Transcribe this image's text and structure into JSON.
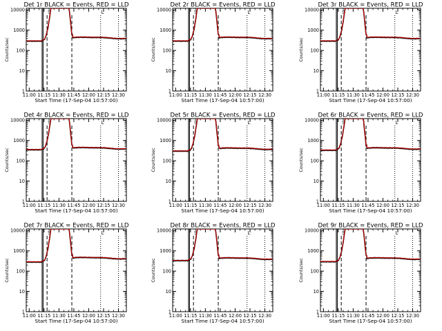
{
  "figure": {
    "x_axis_title": "Start Time (17-Sep-04 10:57:00)",
    "y_axis_title": "Counts/sec",
    "x_tick_labels": [
      "11:00",
      "11:15",
      "11:30",
      "11:45",
      "12:00",
      "12:15",
      "12:30"
    ],
    "y_tick_labels": [
      "1",
      "10",
      "100",
      "1000",
      "10000"
    ],
    "markers": [
      "S",
      "L"
    ]
  },
  "chart_data": [
    {
      "type": "line",
      "title": "Det 1r BLACK = Events, RED = LLD",
      "xlabel": "Start Time (17-Sep-04 10:57:00)",
      "ylabel": "Counts/sec",
      "ylim": [
        1,
        12000
      ],
      "yscale": "log",
      "x_tick_labels": [
        "11:00",
        "11:15",
        "11:30",
        "11:45",
        "12:00",
        "12:15",
        "12:30"
      ],
      "y_tick_labels": [
        "1",
        "10",
        "100",
        "1000",
        "10000"
      ],
      "baseline": 290,
      "plateau": 400,
      "solid_vlines": [
        "11:13",
        "11:14"
      ],
      "dashed_vlines": [
        "11:18",
        "11:43"
      ],
      "dotted_vlines": [
        "12:12",
        "12:30"
      ],
      "series": [
        {
          "color": "#000000"
        },
        {
          "color": "#cc0000"
        }
      ]
    },
    {
      "type": "line",
      "title": "Det 2r BLACK = Events, RED = LLD",
      "xlabel": "Start Time (17-Sep-04 10:57:00)",
      "ylabel": "Counts/sec",
      "ylim": [
        1,
        12000
      ],
      "yscale": "log",
      "x_tick_labels": [
        "11:00",
        "11:15",
        "11:30",
        "11:45",
        "12:00",
        "12:15",
        "12:30"
      ],
      "y_tick_labels": [
        "1",
        "10",
        "100",
        "1000",
        "10000"
      ],
      "baseline": 290,
      "plateau": 400,
      "solid_vlines": [
        "11:13",
        "11:14"
      ],
      "dashed_vlines": [
        "11:18",
        "11:43"
      ],
      "dotted_vlines": [
        "12:12",
        "12:30"
      ],
      "series": [
        {
          "color": "#000000"
        },
        {
          "color": "#cc0000"
        }
      ]
    },
    {
      "type": "line",
      "title": "Det 3r BLACK = Events, RED = LLD",
      "xlabel": "Start Time (17-Sep-04 10:57:00)",
      "ylabel": "Counts/sec",
      "ylim": [
        1,
        12000
      ],
      "yscale": "log",
      "x_tick_labels": [
        "11:00",
        "11:15",
        "11:30",
        "11:45",
        "12:00",
        "12:15",
        "12:30"
      ],
      "y_tick_labels": [
        "1",
        "10",
        "100",
        "1000",
        "10000"
      ],
      "baseline": 290,
      "plateau": 400,
      "solid_vlines": [
        "11:13",
        "11:14"
      ],
      "dashed_vlines": [
        "11:18",
        "11:43"
      ],
      "dotted_vlines": [
        "12:12",
        "12:30"
      ],
      "series": [
        {
          "color": "#000000"
        },
        {
          "color": "#cc0000"
        }
      ]
    },
    {
      "type": "line",
      "title": "Det 4r BLACK = Events, RED = LLD",
      "xlabel": "Start Time (17-Sep-04 10:57:00)",
      "ylabel": "Counts/sec",
      "ylim": [
        1,
        12000
      ],
      "yscale": "log",
      "x_tick_labels": [
        "11:00",
        "11:15",
        "11:30",
        "11:45",
        "12:00",
        "12:15",
        "12:30"
      ],
      "y_tick_labels": [
        "1",
        "10",
        "100",
        "1000",
        "10000"
      ],
      "baseline": 350,
      "plateau": 400,
      "solid_vlines": [
        "11:13",
        "11:14"
      ],
      "dashed_vlines": [
        "11:18",
        "11:43"
      ],
      "dotted_vlines": [
        "12:12",
        "12:30"
      ],
      "series": [
        {
          "color": "#000000"
        },
        {
          "color": "#cc0000"
        }
      ]
    },
    {
      "type": "line",
      "title": "Det 5r BLACK = Events, RED = LLD",
      "xlabel": "Start Time (17-Sep-04 10:57:00)",
      "ylabel": "Counts/sec",
      "ylim": [
        1,
        12000
      ],
      "yscale": "log",
      "x_tick_labels": [
        "11:00",
        "11:15",
        "11:30",
        "11:45",
        "12:00",
        "12:15",
        "12:30"
      ],
      "y_tick_labels": [
        "1",
        "10",
        "100",
        "1000",
        "10000"
      ],
      "baseline": 300,
      "plateau": 380,
      "solid_vlines": [
        "11:13",
        "11:14"
      ],
      "dashed_vlines": [
        "11:18",
        "11:43"
      ],
      "dotted_vlines": [
        "12:12",
        "12:30"
      ],
      "series": [
        {
          "color": "#000000"
        },
        {
          "color": "#cc0000"
        }
      ]
    },
    {
      "type": "line",
      "title": "Det 6r BLACK = Events, RED = LLD",
      "xlabel": "Start Time (17-Sep-04 10:57:00)",
      "ylabel": "Counts/sec",
      "ylim": [
        1,
        12000
      ],
      "yscale": "log",
      "x_tick_labels": [
        "11:00",
        "11:15",
        "11:30",
        "11:45",
        "12:00",
        "12:15",
        "12:30"
      ],
      "y_tick_labels": [
        "1",
        "10",
        "100",
        "1000",
        "10000"
      ],
      "baseline": 330,
      "plateau": 390,
      "solid_vlines": [
        "11:13",
        "11:14"
      ],
      "dashed_vlines": [
        "11:18",
        "11:43"
      ],
      "dotted_vlines": [
        "12:12",
        "12:30"
      ],
      "series": [
        {
          "color": "#000000"
        },
        {
          "color": "#cc0000"
        }
      ]
    },
    {
      "type": "line",
      "title": "Det 7r BLACK = Events, RED = LLD",
      "xlabel": "Start Time (17-Sep-04 10:57:00)",
      "ylabel": "Counts/sec",
      "ylim": [
        1,
        12000
      ],
      "yscale": "log",
      "x_tick_labels": [
        "11:00",
        "11:15",
        "11:30",
        "11:45",
        "12:00",
        "12:15",
        "12:30"
      ],
      "y_tick_labels": [
        "1",
        "10",
        "100",
        "1000",
        "10000"
      ],
      "baseline": 280,
      "plateau": 420,
      "solid_vlines": [
        "11:13",
        "11:14"
      ],
      "dashed_vlines": [
        "11:18",
        "11:43"
      ],
      "dotted_vlines": [
        "12:12",
        "12:30"
      ],
      "series": [
        {
          "color": "#000000"
        },
        {
          "color": "#cc0000"
        }
      ]
    },
    {
      "type": "line",
      "title": "Det 8r BLACK = Events, RED = LLD",
      "xlabel": "Start Time (17-Sep-04 10:57:00)",
      "ylabel": "Counts/sec",
      "ylim": [
        1,
        12000
      ],
      "yscale": "log",
      "x_tick_labels": [
        "11:00",
        "11:15",
        "11:30",
        "11:45",
        "12:00",
        "12:15",
        "12:30"
      ],
      "y_tick_labels": [
        "1",
        "10",
        "100",
        "1000",
        "10000"
      ],
      "baseline": 330,
      "plateau": 400,
      "solid_vlines": [
        "11:13",
        "11:14"
      ],
      "dashed_vlines": [
        "11:18",
        "11:43"
      ],
      "dotted_vlines": [
        "12:12",
        "12:30"
      ],
      "series": [
        {
          "color": "#000000"
        },
        {
          "color": "#cc0000"
        }
      ]
    },
    {
      "type": "line",
      "title": "Det 9r BLACK = Events, RED = LLD",
      "xlabel": "Start Time (17-Sep-04 10:57:00)",
      "ylabel": "Counts/sec",
      "ylim": [
        1,
        12000
      ],
      "yscale": "log",
      "x_tick_labels": [
        "11:00",
        "11:15",
        "11:30",
        "11:45",
        "12:00",
        "12:15",
        "12:30"
      ],
      "y_tick_labels": [
        "1",
        "10",
        "100",
        "1000",
        "10000"
      ],
      "baseline": 290,
      "plateau": 400,
      "solid_vlines": [
        "11:13",
        "11:14"
      ],
      "dashed_vlines": [
        "11:18",
        "11:43"
      ],
      "dotted_vlines": [
        "12:12",
        "12:30"
      ],
      "series": [
        {
          "color": "#000000"
        },
        {
          "color": "#cc0000"
        }
      ]
    }
  ]
}
